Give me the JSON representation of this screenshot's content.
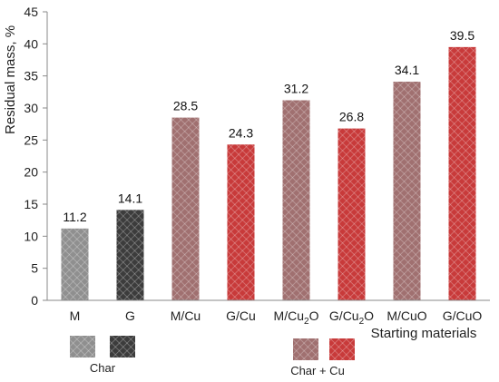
{
  "chart_data": {
    "type": "bar",
    "categories": [
      {
        "base": "M",
        "sub": "",
        "after": ""
      },
      {
        "base": "G",
        "sub": "",
        "after": ""
      },
      {
        "base": "M/Cu",
        "sub": "",
        "after": ""
      },
      {
        "base": "G/Cu",
        "sub": "",
        "after": ""
      },
      {
        "base": "M/Cu",
        "sub": "2",
        "after": "O"
      },
      {
        "base": "G/Cu",
        "sub": "2",
        "after": "O"
      },
      {
        "base": "M/CuO",
        "sub": "",
        "after": ""
      },
      {
        "base": "G/CuO",
        "sub": "",
        "after": ""
      }
    ],
    "values": [
      11.2,
      14.1,
      28.5,
      24.3,
      31.2,
      26.8,
      34.1,
      39.5
    ],
    "data_labels": [
      "11.2",
      "14.1",
      "28.5",
      "24.3",
      "31.2",
      "26.8",
      "34.1",
      "39.5"
    ],
    "bar_colors": [
      "#8f8f8f",
      "#3c3c3c",
      "#a07070",
      "#c83a3a",
      "#a07070",
      "#c83a3a",
      "#a07070",
      "#c83a3a"
    ],
    "ylabel": "Residual mass, %",
    "xlabel": "Starting materials",
    "ylim": [
      0,
      45
    ],
    "yticks": [
      0,
      5,
      10,
      15,
      20,
      25,
      30,
      35,
      40,
      45
    ],
    "grid": false,
    "legend_groups": [
      {
        "label": "Char",
        "swatches": [
          "#8f8f8f",
          "#3c3c3c"
        ]
      },
      {
        "label": "Char + Cu",
        "swatches": [
          "#a07070",
          "#c83a3a"
        ]
      }
    ],
    "legend_position": "bottom"
  }
}
